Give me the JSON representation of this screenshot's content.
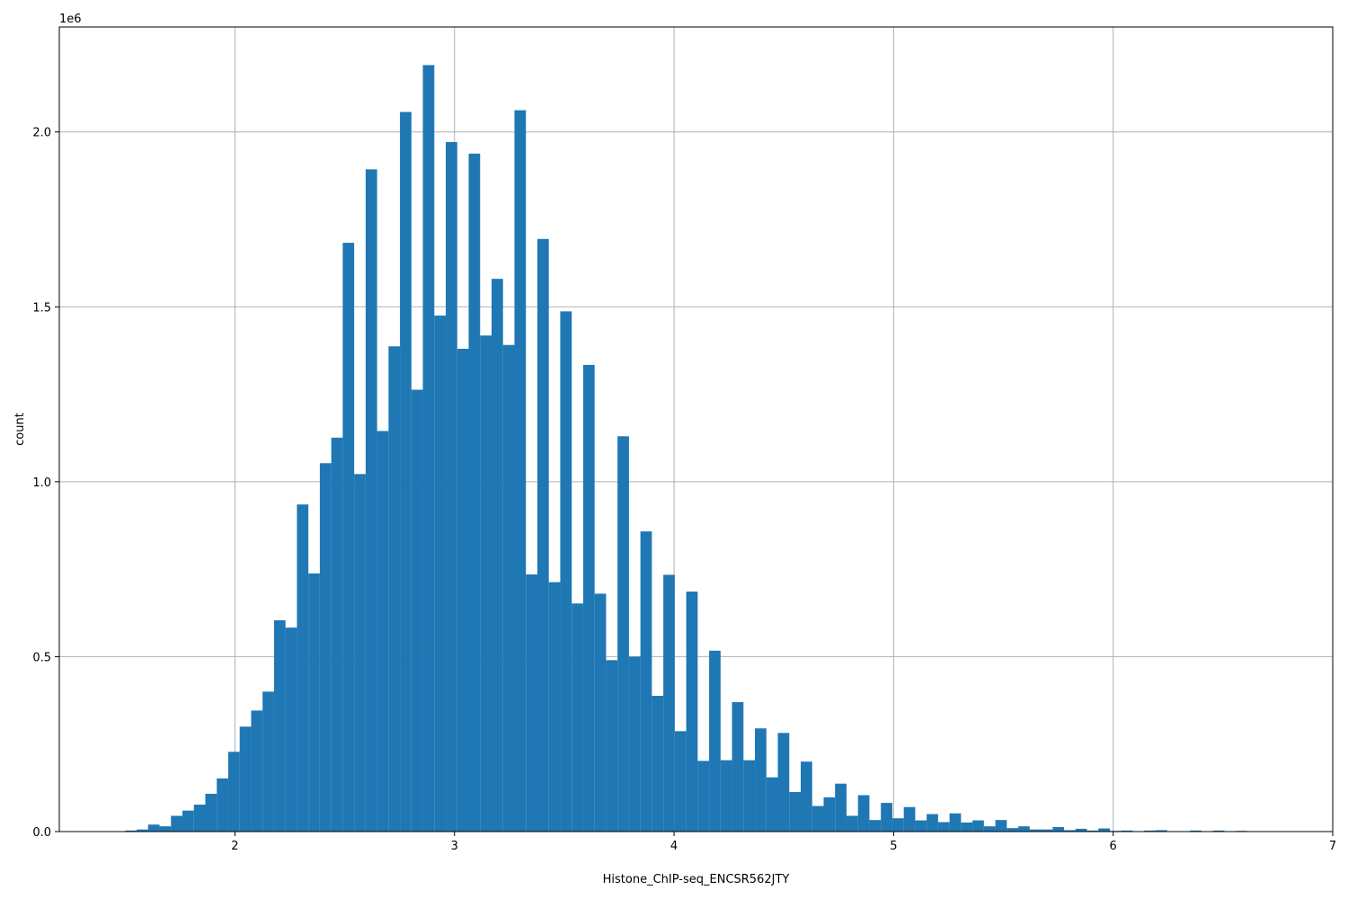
{
  "chart_data": {
    "type": "bar",
    "subtype": "histogram",
    "title": "",
    "xlabel": "Histone_ChIP-seq_ENCSR562JTY",
    "ylabel": "count",
    "y_offset_label": "1e6",
    "xlim": [
      1.2,
      7.0
    ],
    "ylim": [
      0,
      2.3
    ],
    "x_ticks": [
      2,
      3,
      4,
      5,
      6,
      7
    ],
    "x_tick_labels": [
      "2",
      "3",
      "4",
      "5",
      "6",
      "7"
    ],
    "y_ticks": [
      0.0,
      0.5,
      1.0,
      1.5,
      2.0
    ],
    "y_tick_labels": [
      "0.0",
      "0.5",
      "1.0",
      "1.5",
      "2.0"
    ],
    "grid": true,
    "color": "#1f77b4",
    "bin_width": 0.05215,
    "bin_left_edges": [
      1.5,
      1.5522,
      1.6043,
      1.6565,
      1.7086,
      1.7608,
      1.8129,
      1.8651,
      1.9172,
      1.9694,
      2.0215,
      2.0737,
      2.1258,
      2.178,
      2.2301,
      2.2823,
      2.3344,
      2.3866,
      2.4387,
      2.4909,
      2.543,
      2.5952,
      2.6473,
      2.6995,
      2.7516,
      2.8038,
      2.8559,
      2.9081,
      2.9602,
      3.0124,
      3.0645,
      3.1167,
      3.1688,
      3.221,
      3.2731,
      3.3253,
      3.3774,
      3.4296,
      3.4817,
      3.5339,
      3.586,
      3.6382,
      3.6903,
      3.7425,
      3.7946,
      3.8468,
      3.8989,
      3.9511,
      4.0032,
      4.0554,
      4.1075,
      4.1597,
      4.2118,
      4.264,
      4.3161,
      4.3683,
      4.4204,
      4.4726,
      4.5247,
      4.5769,
      4.629,
      4.6812,
      4.7333,
      4.7855,
      4.8376,
      4.8898,
      4.9419,
      4.9941,
      5.0462,
      5.0984,
      5.1505,
      5.2027,
      5.2548,
      5.307,
      5.3591,
      5.4113,
      5.4634,
      5.5156,
      5.5677,
      5.6199,
      5.672,
      5.7242,
      5.7763,
      5.8285,
      5.8806,
      5.9328,
      5.9849,
      6.0371,
      6.0892,
      6.1414,
      6.1935,
      6.2457,
      6.2978,
      6.35,
      6.4021,
      6.4543,
      6.5064,
      6.5586,
      6.6107,
      6.6629
    ],
    "values": [
      0.003,
      0.006,
      0.02,
      0.015,
      0.045,
      0.06,
      0.077,
      0.108,
      0.152,
      0.228,
      0.3,
      0.346,
      0.4,
      0.604,
      0.583,
      0.935,
      0.738,
      1.053,
      1.126,
      1.683,
      1.022,
      1.893,
      1.145,
      1.387,
      2.057,
      1.263,
      2.191,
      1.475,
      1.971,
      1.38,
      1.938,
      1.418,
      1.58,
      1.391,
      2.062,
      0.735,
      1.694,
      0.713,
      1.487,
      0.652,
      1.334,
      0.68,
      0.49,
      1.13,
      0.5,
      0.858,
      0.388,
      0.734,
      0.287,
      0.686,
      0.202,
      0.517,
      0.204,
      0.37,
      0.204,
      0.295,
      0.155,
      0.282,
      0.113,
      0.2,
      0.073,
      0.098,
      0.137,
      0.045,
      0.104,
      0.033,
      0.082,
      0.038,
      0.07,
      0.032,
      0.05,
      0.027,
      0.052,
      0.026,
      0.032,
      0.015,
      0.033,
      0.01,
      0.015,
      0.006,
      0.006,
      0.013,
      0.004,
      0.008,
      0.003,
      0.009,
      0.002,
      0.003,
      0.001,
      0.003,
      0.004,
      0.001,
      0.001,
      0.003,
      0.001,
      0.003,
      0.001,
      0.002,
      0.001,
      0.001
    ]
  }
}
